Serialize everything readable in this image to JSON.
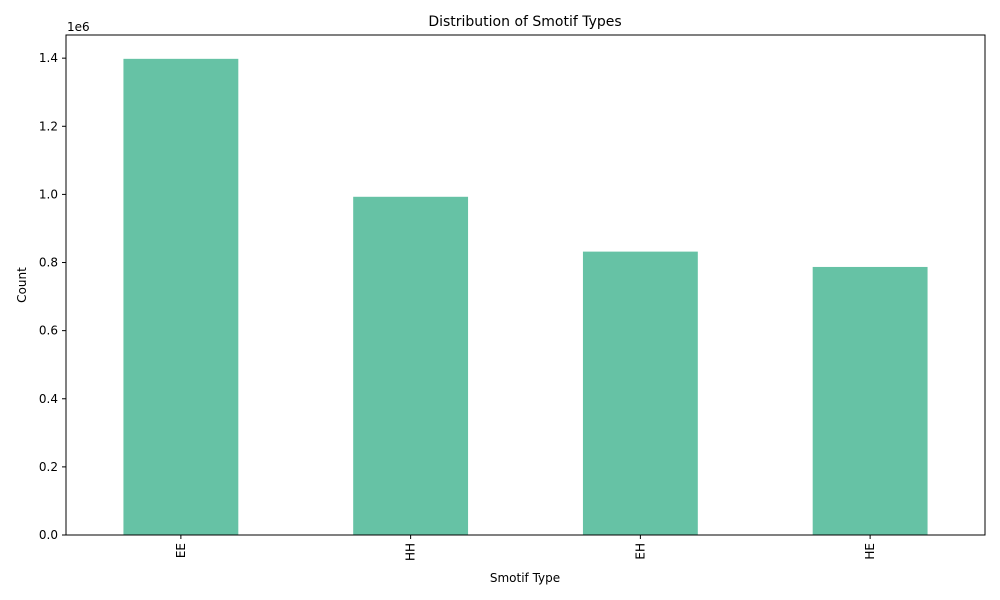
{
  "chart_data": {
    "type": "bar",
    "title": "Distribution of Smotif Types",
    "xlabel": "Smotif Type",
    "ylabel": "Count",
    "offset_label": "1e6",
    "categories": [
      "EE",
      "HH",
      "EH",
      "HE"
    ],
    "values": [
      1398000,
      993000,
      832000,
      787000
    ],
    "ylim": [
      0,
      1468000
    ],
    "yticks": [
      0,
      200000,
      400000,
      600000,
      800000,
      1000000,
      1200000,
      1400000
    ],
    "ytick_labels": [
      "0.0",
      "0.2",
      "0.4",
      "0.6",
      "0.8",
      "1.0",
      "1.2",
      "1.4"
    ],
    "bar_color": "#66c2a5",
    "grid": false,
    "legend": "none"
  }
}
